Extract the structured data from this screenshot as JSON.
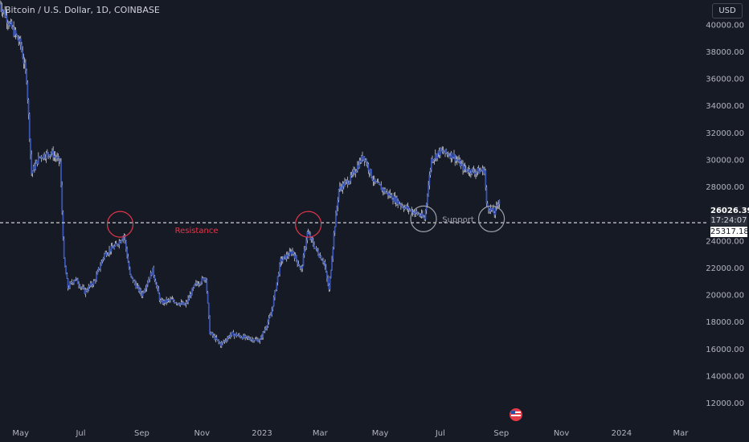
{
  "header": {
    "symbol_label": "Bitcoin / U.S. Dollar, 1D, COINBASE"
  },
  "currency_button": "USD",
  "price_tags": {
    "last_price": "26026.39",
    "countdown": "17:24:07",
    "line_price": "25317.18"
  },
  "colors": {
    "background": "#161a25",
    "candle": "#3a54b6",
    "wick": "#c8cbd3",
    "resistance": "#e0364a",
    "support": "#9ea2ab",
    "grid_text": "#b2b5be"
  },
  "chart_data": {
    "type": "line",
    "title": "Bitcoin / U.S. Dollar, 1D, COINBASE",
    "y_axis": {
      "ticks": [
        "40000.00",
        "38000.00",
        "36000.00",
        "34000.00",
        "32000.00",
        "30000.00",
        "28000.00",
        "24000.00",
        "22000.00",
        "20000.00",
        "18000.00",
        "16000.00",
        "14000.00",
        "12000.00"
      ],
      "ylim": [
        10400,
        41800
      ]
    },
    "x_axis": {
      "ticks": [
        "May",
        "Jul",
        "Sep",
        "Nov",
        "2023",
        "Mar",
        "May",
        "Jul",
        "Sep",
        "Nov",
        "2024",
        "Mar"
      ],
      "range": [
        "2022-04-10",
        "2024-03-28"
      ]
    },
    "series": [
      {
        "x": [
          "2022-04-10",
          "2022-04-20",
          "2022-05-01",
          "2022-05-07",
          "2022-05-12",
          "2022-05-20",
          "2022-06-01",
          "2022-06-10",
          "2022-06-14",
          "2022-06-18",
          "2022-06-25",
          "2022-07-05",
          "2022-07-15",
          "2022-07-25",
          "2022-08-05",
          "2022-08-14",
          "2022-08-20",
          "2022-09-01",
          "2022-09-12",
          "2022-09-20",
          "2022-10-01",
          "2022-10-15",
          "2022-10-25",
          "2022-11-05",
          "2022-11-09",
          "2022-11-20",
          "2022-12-01",
          "2022-12-15",
          "2022-12-30",
          "2023-01-10",
          "2023-01-20",
          "2023-02-01",
          "2023-02-10",
          "2023-02-16",
          "2023-02-25",
          "2023-03-05",
          "2023-03-10",
          "2023-03-15",
          "2023-03-20",
          "2023-04-01",
          "2023-04-14",
          "2023-04-25",
          "2023-05-10",
          "2023-05-25",
          "2023-06-10",
          "2023-06-15",
          "2023-06-22",
          "2023-07-01",
          "2023-07-14",
          "2023-07-25",
          "2023-08-05",
          "2023-08-15",
          "2023-08-17",
          "2023-08-25",
          "2023-08-30"
        ],
        "values": [
          41500,
          40000,
          38500,
          36000,
          29000,
          30200,
          30500,
          29800,
          22500,
          20500,
          21200,
          20200,
          21000,
          23000,
          23600,
          24400,
          21400,
          20000,
          21800,
          19400,
          19600,
          19200,
          20700,
          21300,
          17200,
          16300,
          17100,
          16800,
          16600,
          18500,
          22500,
          23200,
          21800,
          24600,
          23300,
          22400,
          20300,
          24500,
          27800,
          28600,
          30300,
          28300,
          27400,
          26500,
          25900,
          25600,
          30000,
          30600,
          30300,
          29300,
          29100,
          29200,
          26600,
          26000,
          27100
        ]
      }
    ],
    "annotations": [
      {
        "type": "hline",
        "y": 25317.18
      },
      {
        "type": "circle",
        "x": "2022-08-10",
        "y": 25200,
        "label": "Resistance"
      },
      {
        "type": "circle",
        "x": "2023-02-17",
        "y": 25200
      },
      {
        "type": "circle",
        "x": "2023-06-14",
        "y": 25600,
        "label": "Support"
      },
      {
        "type": "circle",
        "x": "2023-08-22",
        "y": 25600
      }
    ],
    "grid": false,
    "legend": "none"
  }
}
